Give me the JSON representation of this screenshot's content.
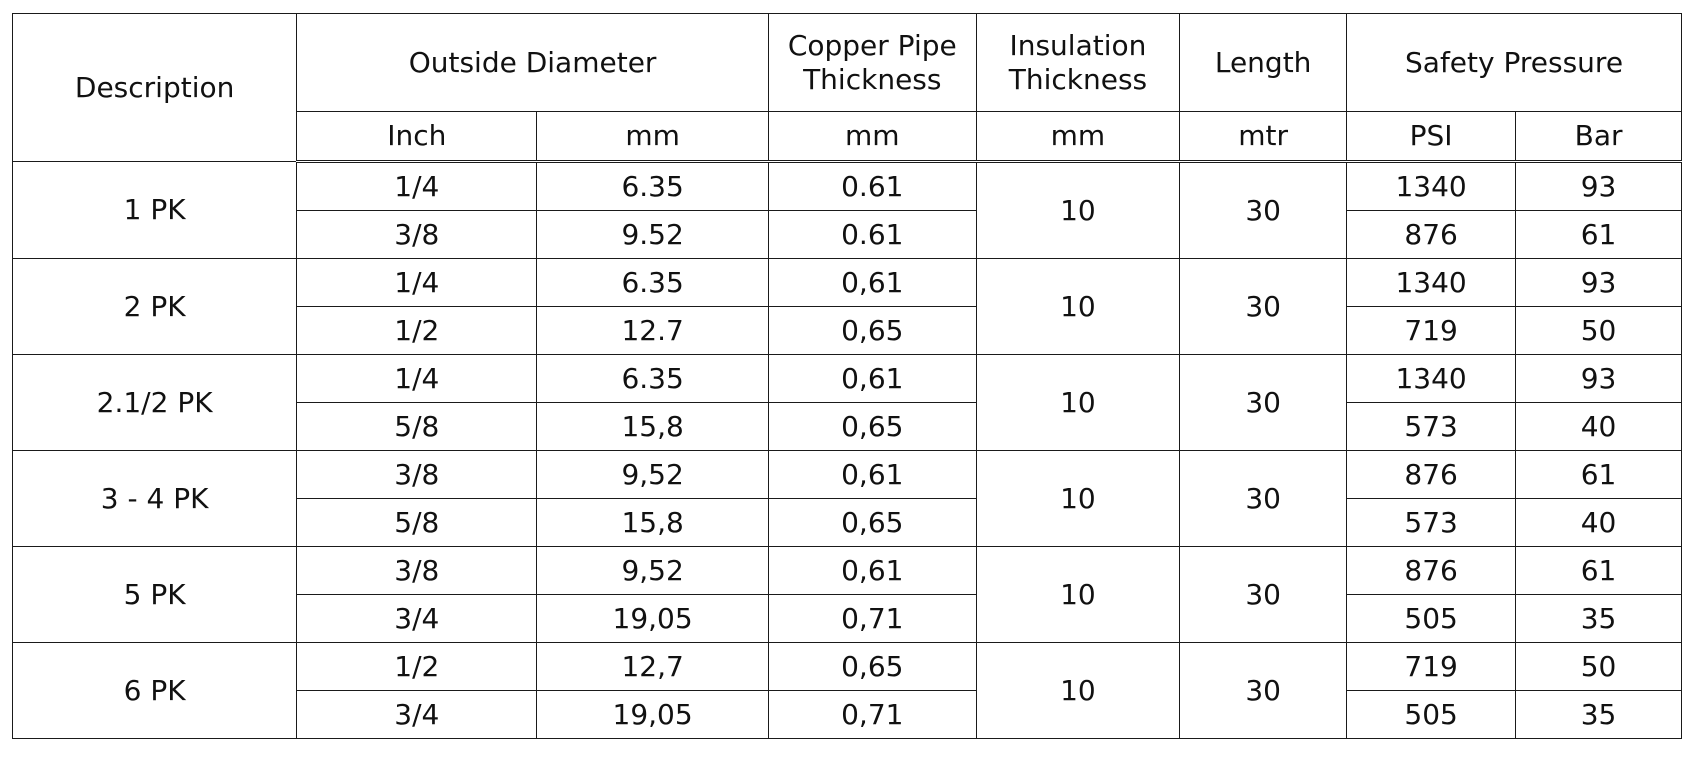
{
  "headers": {
    "description": "Description",
    "outside_diameter": "Outside Diameter",
    "copper_line1": "Copper Pipe",
    "copper_line2": "Thickness",
    "insulation_line1": "Insulation",
    "insulation_line2": "Thickness",
    "length": "Length",
    "safety_pressure": "Safety Pressure"
  },
  "units": {
    "inch": "Inch",
    "od_mm": "mm",
    "copper_mm": "mm",
    "insulation_mm": "mm",
    "length_mtr": "mtr",
    "psi": "PSI",
    "bar": "Bar"
  },
  "groups": [
    {
      "description": "1 PK",
      "insulation": "10",
      "length": "30",
      "rows": [
        {
          "inch": "1/4",
          "mm": "6.35",
          "copper": "0.61",
          "psi": "1340",
          "bar": "93"
        },
        {
          "inch": "3/8",
          "mm": "9.52",
          "copper": "0.61",
          "psi": "876",
          "bar": "61"
        }
      ]
    },
    {
      "description": "2 PK",
      "insulation": "10",
      "length": "30",
      "rows": [
        {
          "inch": "1/4",
          "mm": "6.35",
          "copper": "0,61",
          "psi": "1340",
          "bar": "93"
        },
        {
          "inch": "1/2",
          "mm": "12.7",
          "copper": "0,65",
          "psi": "719",
          "bar": "50"
        }
      ]
    },
    {
      "description": "2.1/2 PK",
      "insulation": "10",
      "length": "30",
      "rows": [
        {
          "inch": "1/4",
          "mm": "6.35",
          "copper": "0,61",
          "psi": "1340",
          "bar": "93"
        },
        {
          "inch": "5/8",
          "mm": "15,8",
          "copper": "0,65",
          "psi": "573",
          "bar": "40"
        }
      ]
    },
    {
      "description": "3 - 4 PK",
      "insulation": "10",
      "length": "30",
      "rows": [
        {
          "inch": "3/8",
          "mm": "9,52",
          "copper": "0,61",
          "psi": "876",
          "bar": "61"
        },
        {
          "inch": "5/8",
          "mm": "15,8",
          "copper": "0,65",
          "psi": "573",
          "bar": "40"
        }
      ]
    },
    {
      "description": "5 PK",
      "insulation": "10",
      "length": "30",
      "rows": [
        {
          "inch": "3/8",
          "mm": "9,52",
          "copper": "0,61",
          "psi": "876",
          "bar": "61"
        },
        {
          "inch": "3/4",
          "mm": "19,05",
          "copper": "0,71",
          "psi": "505",
          "bar": "35"
        }
      ]
    },
    {
      "description": "6 PK",
      "insulation": "10",
      "length": "30",
      "rows": [
        {
          "inch": "1/2",
          "mm": "12,7",
          "copper": "0,65",
          "psi": "719",
          "bar": "50"
        },
        {
          "inch": "3/4",
          "mm": "19,05",
          "copper": "0,71",
          "psi": "505",
          "bar": "35"
        }
      ]
    }
  ]
}
